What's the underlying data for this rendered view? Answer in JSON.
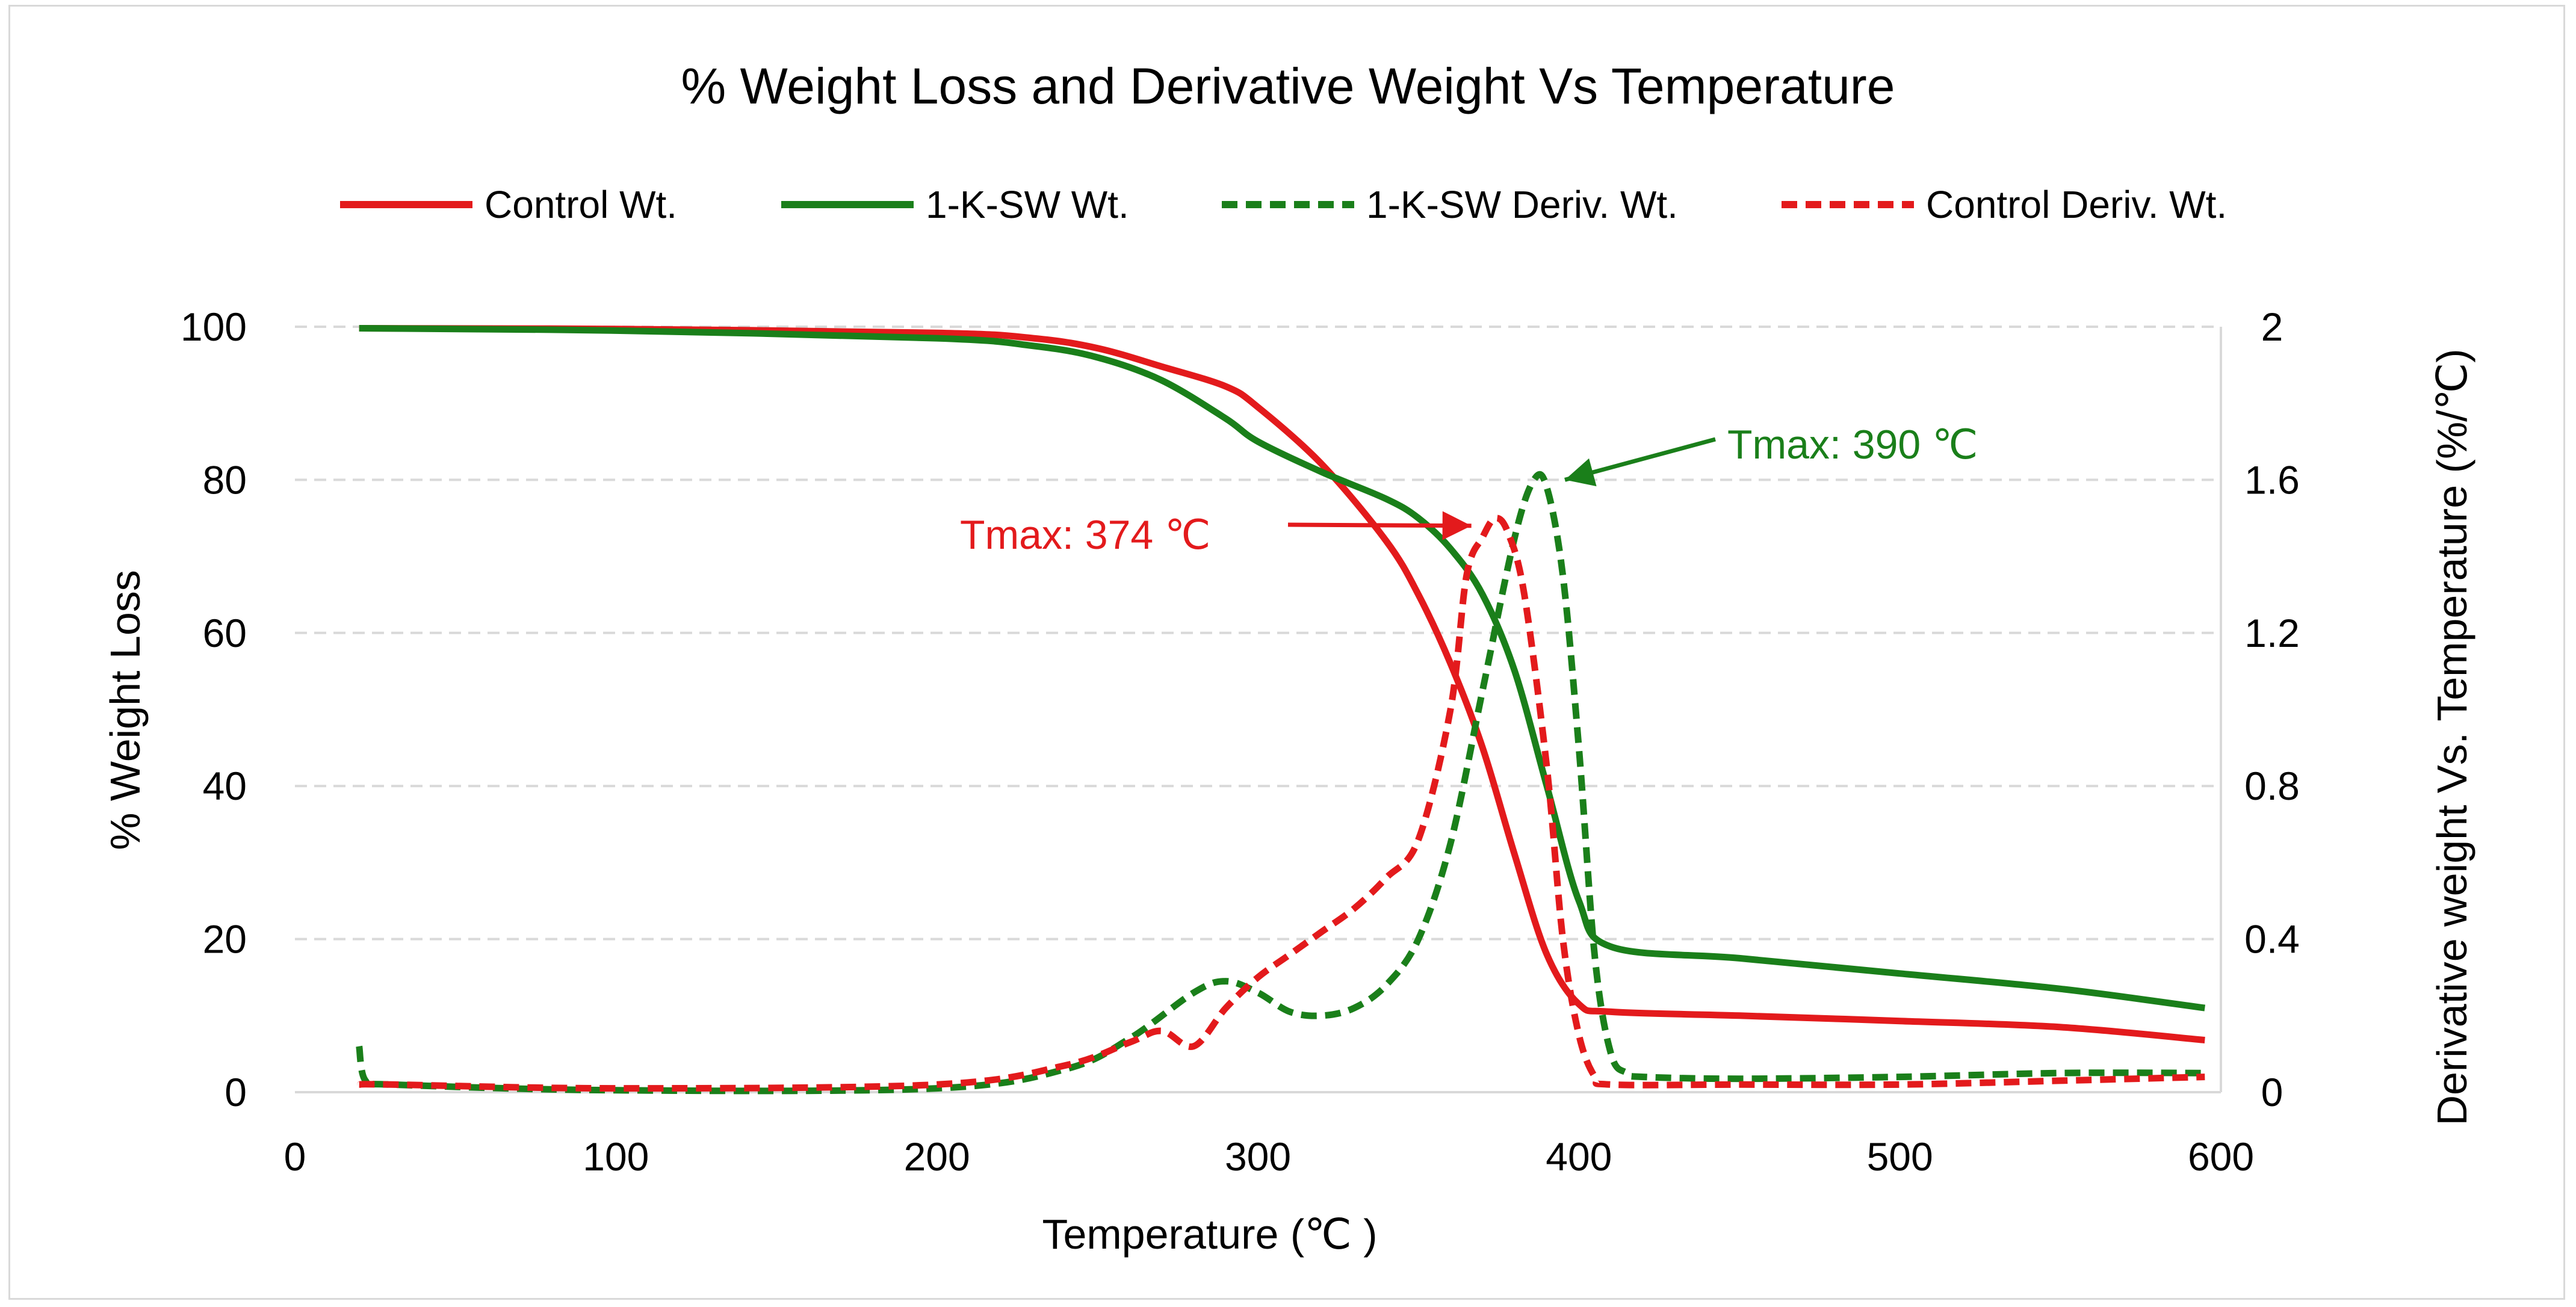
{
  "chart_data": {
    "type": "line",
    "title": "% Weight Loss and Derivative Weight Vs Temperature",
    "xlabel": "Temperature (℃ )",
    "ylabel": "% Weight Loss",
    "y2label": "Derivative weight Vs. Temperature (%/℃)",
    "xlim": [
      0,
      600
    ],
    "ylim": [
      0,
      100
    ],
    "y2lim": [
      0,
      2
    ],
    "x_ticks": [
      "0",
      "100",
      "200",
      "300",
      "400",
      "500",
      "600"
    ],
    "y_ticks": [
      "0",
      "20",
      "40",
      "60",
      "80",
      "100"
    ],
    "y2_ticks": [
      "0",
      "0.4",
      "0.8",
      "1.2",
      "1.6",
      "2"
    ],
    "grid": true,
    "legend_position": "top",
    "series": [
      {
        "name": "Control Wt.",
        "axis": "left",
        "color": "#e31a1c",
        "dash": "solid",
        "x": [
          20,
          100,
          200,
          230,
          250,
          270,
          290,
          300,
          320,
          340,
          350,
          360,
          370,
          380,
          390,
          400,
          410,
          450,
          500,
          550,
          595
        ],
        "y": [
          99.8,
          99.7,
          99.2,
          98.5,
          97.2,
          94.8,
          92.2,
          89.5,
          82.0,
          72.0,
          65.0,
          56.0,
          45.0,
          31.0,
          18.0,
          11.5,
          10.5,
          10.0,
          9.3,
          8.5,
          6.8
        ]
      },
      {
        "name": "1-K-SW Wt.",
        "axis": "left",
        "color": "#1a7f1a",
        "dash": "solid",
        "x": [
          20,
          100,
          200,
          230,
          250,
          270,
          290,
          300,
          320,
          340,
          350,
          360,
          370,
          380,
          390,
          400,
          410,
          450,
          500,
          550,
          595
        ],
        "y": [
          99.8,
          99.5,
          98.5,
          97.5,
          96.0,
          93.0,
          88.0,
          85.0,
          81.0,
          77.5,
          75.0,
          71.0,
          65.0,
          55.0,
          40.0,
          25.0,
          19.0,
          17.5,
          15.5,
          13.5,
          11.0
        ]
      },
      {
        "name": "1-K-SW Deriv. Wt.",
        "axis": "right",
        "color": "#1a7f1a",
        "dash": "dashed",
        "x": [
          20,
          22,
          30,
          100,
          200,
          240,
          260,
          280,
          290,
          300,
          310,
          320,
          330,
          340,
          350,
          360,
          370,
          380,
          386,
          390,
          395,
          400,
          405,
          410,
          415,
          420,
          450,
          500,
          550,
          595
        ],
        "y": [
          0.12,
          0.03,
          0.02,
          0.005,
          0.01,
          0.06,
          0.14,
          0.26,
          0.29,
          0.26,
          0.21,
          0.2,
          0.22,
          0.28,
          0.4,
          0.65,
          1.05,
          1.45,
          1.6,
          1.58,
          1.35,
          0.9,
          0.35,
          0.1,
          0.05,
          0.04,
          0.035,
          0.04,
          0.05,
          0.05
        ]
      },
      {
        "name": "Control Deriv. Wt.",
        "axis": "right",
        "color": "#e31a1c",
        "dash": "dashed",
        "x": [
          20,
          30,
          100,
          200,
          240,
          260,
          270,
          280,
          290,
          300,
          310,
          320,
          330,
          340,
          350,
          360,
          365,
          370,
          374,
          378,
          383,
          390,
          395,
          400,
          405,
          410,
          450,
          500,
          550,
          595
        ],
        "y": [
          0.02,
          0.02,
          0.01,
          0.02,
          0.07,
          0.13,
          0.16,
          0.12,
          0.22,
          0.3,
          0.36,
          0.42,
          0.48,
          0.56,
          0.66,
          1.0,
          1.35,
          1.45,
          1.5,
          1.46,
          1.3,
          0.85,
          0.4,
          0.15,
          0.04,
          0.02,
          0.02,
          0.02,
          0.03,
          0.04
        ]
      }
    ],
    "annotations": [
      {
        "text": "Tmax: 374 ℃",
        "color": "#e31a1c",
        "target_x": 374,
        "target_y2": 1.48
      },
      {
        "text": "Tmax: 390 ℃",
        "color": "#1a7f1a",
        "target_x": 390,
        "target_y2": 1.6
      }
    ]
  }
}
